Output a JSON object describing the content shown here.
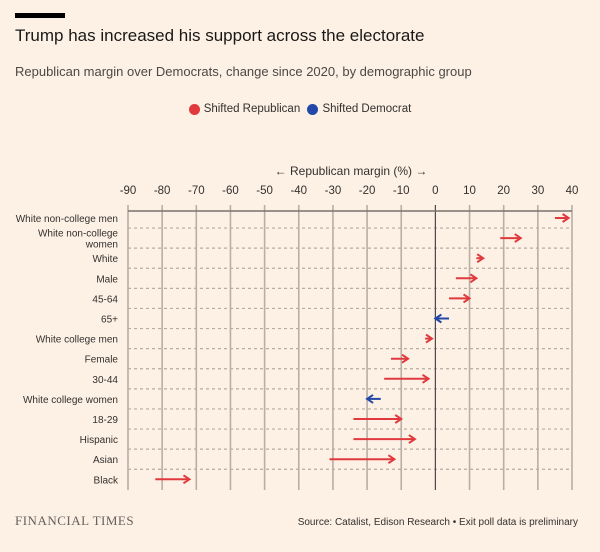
{
  "header": {
    "title": "Trump has increased his support across the electorate",
    "subtitle": "Republican margin over Democrats, change since 2020, by demographic group"
  },
  "legend": [
    {
      "label": "Shifted Republican",
      "color": "#e03a3e"
    },
    {
      "label": "Shifted Democrat",
      "color": "#2248a8"
    }
  ],
  "footer": {
    "brand": "FINANCIAL TIMES",
    "source": "Source: Catalist, Edison Research • Exit poll data is preliminary"
  },
  "chart_data": {
    "type": "arrow",
    "xlabel": "← Republican margin (%) →",
    "xlim": [
      -90,
      40
    ],
    "xticks": [
      "-90",
      "-80",
      "-70",
      "-60",
      "-50",
      "-40",
      "-30",
      "-20",
      "-10",
      "0",
      "10",
      "20",
      "30",
      "40"
    ],
    "grid": true,
    "legend_position": "top-center",
    "rows": [
      {
        "group": "White non-college men",
        "from": 35,
        "to": 39
      },
      {
        "group": "White non-college women",
        "from": 19,
        "to": 25
      },
      {
        "group": "White",
        "from": 12,
        "to": 14
      },
      {
        "group": "Male",
        "from": 6,
        "to": 12
      },
      {
        "group": "45-64",
        "from": 4,
        "to": 10
      },
      {
        "group": "65+",
        "from": 4,
        "to": 0
      },
      {
        "group": "White college men",
        "from": -3,
        "to": -1
      },
      {
        "group": "Female",
        "from": -13,
        "to": -8
      },
      {
        "group": "30-44",
        "from": -15,
        "to": -2
      },
      {
        "group": "White college women",
        "from": -16,
        "to": -20
      },
      {
        "group": "18-29",
        "from": -24,
        "to": -10
      },
      {
        "group": "Hispanic",
        "from": -24,
        "to": -6
      },
      {
        "group": "Asian",
        "from": -31,
        "to": -12
      },
      {
        "group": "Black",
        "from": -82,
        "to": -72
      }
    ]
  }
}
